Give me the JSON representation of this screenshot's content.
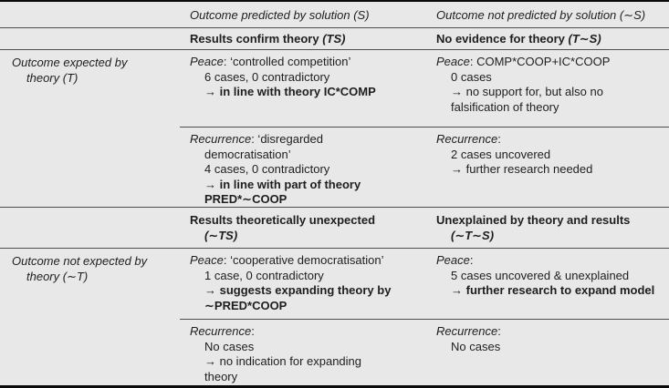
{
  "top_header": {
    "col2": "Outcome predicted by solution (S)",
    "col3": "Outcome not predicted by solution (∼S)"
  },
  "band1": {
    "col2_text": "Results confirm theory ",
    "col2_math": "(TS)",
    "col3_text": "No evidence for theory ",
    "col3_math": "(T∼S)"
  },
  "band2": {
    "col2_line1": "Results theoretically unexpected",
    "col2_line2": "(∼TS)",
    "col3_line1": "Unexplained by theory and results",
    "col3_line2": "(∼T∼S)"
  },
  "row_expected": {
    "label1": "Outcome expected by",
    "label2": "theory (T)",
    "peace_col2": {
      "lead_label": "Peace",
      "lead_rest": ": ‘controlled competition’",
      "l1": "6 cases, 0 contradictory",
      "l2": "→ in line with theory IC*COMP"
    },
    "peace_col3": {
      "lead_label": "Peace",
      "lead_rest": ": COMP*COOP+IC*COOP",
      "l1": "0 cases",
      "l2": "→ no support for, but also no",
      "l3": "falsification of theory"
    },
    "rec_col2": {
      "lead_label": "Recurrence",
      "lead_rest": ": ‘disregarded",
      "l1": "democratisation’",
      "l2": "4 cases, 0 contradictory",
      "l3": "→ in line with part of theory",
      "l4": "PRED*∼COOP"
    },
    "rec_col3": {
      "lead_label": "Recurrence",
      "lead_rest": ":",
      "l1": "2 cases uncovered",
      "l2": "→ further research needed"
    }
  },
  "row_unexpected": {
    "label1": "Outcome not expected by",
    "label2": "theory (∼T)",
    "peace_col2": {
      "lead_label": "Peace",
      "lead_rest": ": ‘cooperative democratisation’",
      "l1": "1 case, 0 contradictory",
      "l2": "→ suggests expanding theory by",
      "l3": "∼PRED*COOP"
    },
    "peace_col3": {
      "lead_label": "Peace",
      "lead_rest": ":",
      "l1": "5 cases uncovered & unexplained",
      "l2": "→ further research to expand model"
    },
    "rec_col2": {
      "lead_label": "Recurrence",
      "lead_rest": ":",
      "l1": "No cases",
      "l2": "→ no indication for expanding",
      "l3": "theory"
    },
    "rec_col3": {
      "lead_label": "Recurrence",
      "lead_rest": ":",
      "l1": "No cases"
    }
  }
}
